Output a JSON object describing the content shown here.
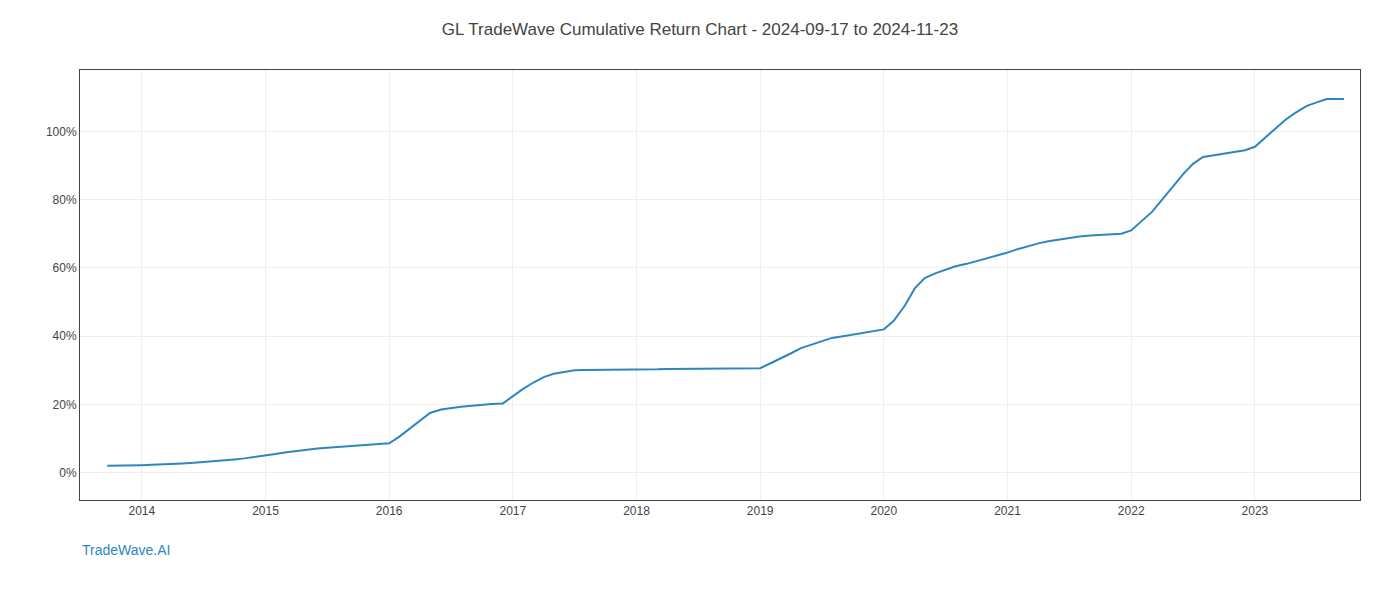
{
  "chart_data": {
    "type": "line",
    "title": "GL TradeWave Cumulative Return Chart - 2024-09-17 to 2024-11-23",
    "annotations": [
      "TradeWave.AI"
    ],
    "color": "#2e86c1",
    "grid": true,
    "xlim": [
      2013.5,
      2023.85
    ],
    "xticks": [
      2014,
      2015,
      2016,
      2017,
      2018,
      2019,
      2020,
      2021,
      2022,
      2023
    ],
    "ylim": [
      -8,
      118
    ],
    "yticks": [
      {
        "value": 0,
        "label": "0%"
      },
      {
        "value": 20,
        "label": "20%"
      },
      {
        "value": 40,
        "label": "40%"
      },
      {
        "value": 60,
        "label": "60%"
      },
      {
        "value": 80,
        "label": "80%"
      },
      {
        "value": 100,
        "label": "100%"
      }
    ],
    "x": [
      2013.72,
      2013.8,
      2013.9,
      2014.0,
      2014.08,
      2014.17,
      2014.25,
      2014.33,
      2014.42,
      2014.5,
      2014.58,
      2014.67,
      2014.75,
      2014.83,
      2014.92,
      2015.0,
      2015.08,
      2015.17,
      2015.25,
      2015.33,
      2015.42,
      2015.5,
      2015.58,
      2015.67,
      2015.75,
      2015.83,
      2015.92,
      2016.0,
      2016.08,
      2016.17,
      2016.25,
      2016.33,
      2016.42,
      2016.5,
      2016.58,
      2016.67,
      2016.75,
      2016.83,
      2016.92,
      2017.0,
      2017.08,
      2017.17,
      2017.25,
      2017.33,
      2017.42,
      2017.5,
      2017.58,
      2017.67,
      2017.75,
      2017.83,
      2017.92,
      2018.0,
      2018.08,
      2018.17,
      2018.25,
      2018.33,
      2018.42,
      2018.5,
      2018.58,
      2018.67,
      2018.75,
      2018.83,
      2018.92,
      2019.0,
      2019.08,
      2019.17,
      2019.25,
      2019.33,
      2019.42,
      2019.5,
      2019.58,
      2019.67,
      2019.75,
      2019.83,
      2019.92,
      2020.0,
      2020.08,
      2020.17,
      2020.25,
      2020.33,
      2020.42,
      2020.5,
      2020.58,
      2020.67,
      2020.75,
      2020.83,
      2020.92,
      2021.0,
      2021.08,
      2021.17,
      2021.25,
      2021.33,
      2021.42,
      2021.5,
      2021.58,
      2021.67,
      2021.75,
      2021.83,
      2021.92,
      2022.0,
      2022.08,
      2022.17,
      2022.25,
      2022.33,
      2022.42,
      2022.5,
      2022.58,
      2022.67,
      2022.75,
      2022.83,
      2022.92,
      2023.0,
      2023.08,
      2023.17,
      2023.25,
      2023.33,
      2023.42,
      2023.5,
      2023.58,
      2023.67,
      2023.72
    ],
    "values": [
      2.0,
      2.0,
      2.0,
      2.2,
      2.3,
      2.4,
      2.5,
      2.7,
      2.9,
      3.1,
      3.3,
      3.6,
      3.9,
      4.2,
      4.6,
      5.0,
      5.5,
      6.0,
      6.4,
      6.8,
      7.1,
      7.3,
      7.5,
      7.7,
      7.9,
      8.1,
      8.3,
      8.6,
      10.5,
      13.0,
      15.5,
      17.5,
      18.5,
      19.0,
      19.3,
      19.6,
      19.9,
      20.1,
      20.3,
      22.5,
      24.5,
      26.5,
      28.0,
      29.0,
      29.5,
      30.0,
      30.1,
      30.1,
      30.1,
      30.1,
      30.1,
      30.1,
      30.2,
      30.3,
      30.4,
      30.4,
      30.4,
      30.4,
      30.4,
      30.4,
      30.4,
      30.4,
      30.4,
      30.6,
      32.0,
      33.5,
      35.0,
      36.5,
      37.5,
      38.5,
      39.5,
      40.0,
      40.5,
      41.0,
      41.5,
      42.0,
      44.5,
      49.0,
      54.0,
      57.0,
      58.5,
      59.5,
      60.5,
      61.2,
      62.0,
      62.8,
      63.5,
      64.5,
      65.5,
      66.5,
      67.2,
      67.8,
      68.3,
      68.8,
      69.2,
      69.5,
      69.7,
      69.9,
      70.0,
      71.0,
      73.5,
      76.5,
      80.0,
      83.5,
      87.5,
      90.5,
      92.5,
      93.0,
      93.5,
      94.0,
      94.5,
      95.5,
      98.0,
      101.0,
      103.5,
      105.5,
      107.5,
      108.5,
      109.5,
      109.5,
      109.5
    ]
  }
}
